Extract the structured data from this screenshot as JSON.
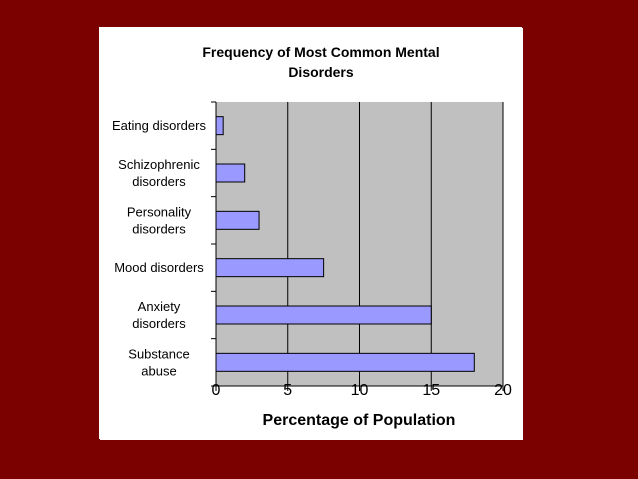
{
  "chart_data": {
    "type": "bar",
    "orientation": "horizontal",
    "title_lines": [
      "Frequency of Most Common Mental",
      "Disorders"
    ],
    "categories": [
      [
        "Eating disorders"
      ],
      [
        "Schizophrenic",
        "disorders"
      ],
      [
        "Personality",
        "disorders"
      ],
      [
        "Mood disorders"
      ],
      [
        "Anxiety",
        "disorders"
      ],
      [
        "Substance",
        "abuse"
      ]
    ],
    "values": [
      0.5,
      2,
      3,
      7.5,
      15,
      18
    ],
    "xlabel": "Percentage of Population",
    "ylabel": "",
    "xlim": [
      0,
      20
    ],
    "xticks": [
      "0",
      "5",
      "10",
      "15",
      "20"
    ],
    "grid": "vertical",
    "legend": "none",
    "colors": {
      "background": "#7b0000",
      "panel": "#ffffff",
      "plot_area": "#c0c0c0",
      "bar_fill": "#9999ff",
      "bar_stroke": "#000000",
      "gridline": "#000000"
    }
  }
}
